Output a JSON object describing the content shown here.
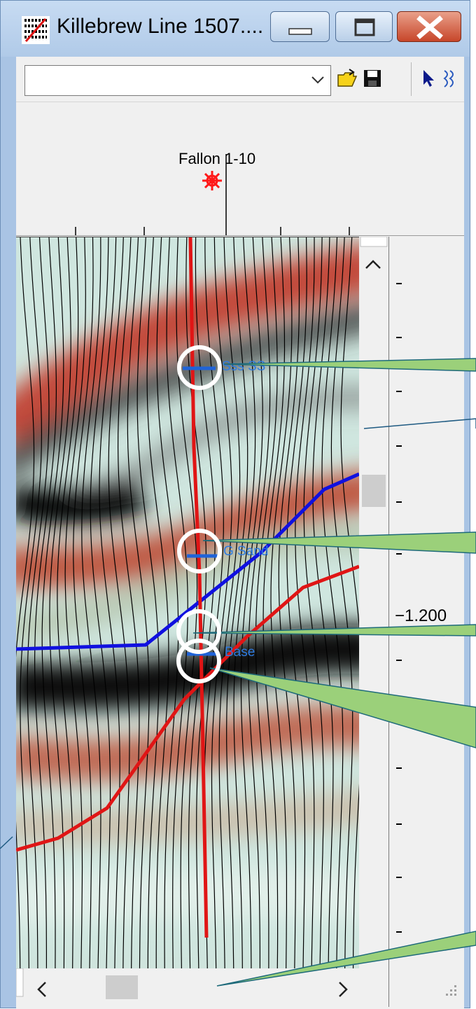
{
  "window": {
    "title": "Killebrew Line 1507....",
    "icon": "seismic-line-icon"
  },
  "toolbar": {
    "combo_value": "",
    "open_icon": "open-folder-icon",
    "save_icon": "save-disk-icon",
    "pointer_icon": "pointer-arrow-icon",
    "wiggle_icon": "wiggle-trace-icon"
  },
  "header": {
    "well_name": "Fallon 1-10",
    "well_symbol_color": "#ff1a1a"
  },
  "axis": {
    "label": "−1.200"
  },
  "colors": {
    "horizon_blue": "#1010e0",
    "fault_red": "#e01515",
    "callout_green": "#9bd07a"
  },
  "horizons": [
    {
      "label": "Sss SS"
    },
    {
      "label": "G Sand"
    },
    {
      "label": "Base"
    }
  ]
}
